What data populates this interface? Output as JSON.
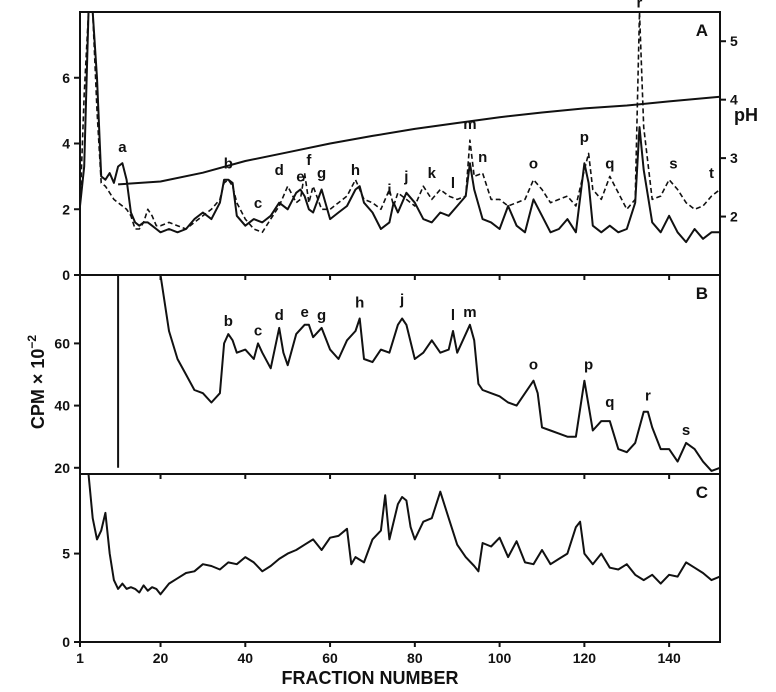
{
  "xlabel": "FRACTION NUMBER",
  "ylabel": "CPM × 10",
  "ylabel_exponent": "−2",
  "chart_data": [
    {
      "panel": "A",
      "type": "line",
      "x_ticks": [
        "1",
        "20",
        "40",
        "60",
        "80",
        "100",
        "120",
        "140"
      ],
      "xlim": [
        1,
        152
      ],
      "ylim": [
        0,
        8
      ],
      "y_ticks": [
        "0",
        "2",
        "4",
        "6"
      ],
      "y2label": "pH",
      "y2_ticks": [
        "2",
        "3",
        "4",
        "5"
      ],
      "y2lim": [
        1,
        5.5
      ],
      "series": [
        {
          "style": "solid",
          "x": [
            1,
            2,
            3,
            4,
            5,
            6,
            7,
            8,
            9,
            10,
            11,
            12,
            13,
            14,
            15,
            16,
            17,
            18,
            19,
            20,
            22,
            24,
            26,
            28,
            30,
            32,
            34,
            35,
            36,
            37,
            38,
            40,
            42,
            44,
            46,
            48,
            50,
            52,
            53,
            54,
            55,
            56,
            58,
            60,
            62,
            64,
            66,
            67,
            68,
            70,
            72,
            74,
            75,
            76,
            78,
            80,
            82,
            84,
            86,
            88,
            90,
            92,
            93,
            94,
            96,
            98,
            100,
            102,
            104,
            106,
            108,
            110,
            112,
            114,
            116,
            118,
            120,
            121,
            122,
            124,
            126,
            128,
            130,
            132,
            133,
            134,
            136,
            138,
            140,
            142,
            144,
            146,
            148,
            150,
            152
          ],
          "y": [
            2.1,
            3.3,
            8,
            8,
            6,
            3,
            2.9,
            3.1,
            2.8,
            3.3,
            3.4,
            2.9,
            1.9,
            1.6,
            1.5,
            1.6,
            1.6,
            1.5,
            1.4,
            1.3,
            1.4,
            1.3,
            1.4,
            1.7,
            1.9,
            1.7,
            2.2,
            2.9,
            2.9,
            2.8,
            1.8,
            1.5,
            1.7,
            1.6,
            1.8,
            2.2,
            2.0,
            2.5,
            2.6,
            2.4,
            2.0,
            1.9,
            2.6,
            1.7,
            1.9,
            2.1,
            2.6,
            2.7,
            2.2,
            1.9,
            1.4,
            1.6,
            2.2,
            1.9,
            2.5,
            2.2,
            1.7,
            1.6,
            1.9,
            1.8,
            2.1,
            2.4,
            3.4,
            2.6,
            1.7,
            1.6,
            1.4,
            2.1,
            1.5,
            1.3,
            2.3,
            1.8,
            1.3,
            1.4,
            1.7,
            1.3,
            3.4,
            2.8,
            1.5,
            1.3,
            1.5,
            1.3,
            1.4,
            2.2,
            4.5,
            3.2,
            1.6,
            1.3,
            1.8,
            1.3,
            1.0,
            1.4,
            1.1,
            1.3,
            1.3
          ]
        },
        {
          "style": "dashed",
          "x": [
            1,
            2,
            3,
            4,
            5,
            6,
            7,
            8,
            9,
            10,
            11,
            12,
            13,
            14,
            15,
            16,
            17,
            18,
            19,
            20,
            22,
            24,
            26,
            28,
            30,
            32,
            34,
            35,
            36,
            37,
            38,
            40,
            42,
            44,
            46,
            48,
            50,
            52,
            53,
            54,
            55,
            56,
            58,
            60,
            62,
            64,
            66,
            67,
            68,
            70,
            72,
            74,
            75,
            76,
            78,
            80,
            82,
            84,
            86,
            88,
            90,
            92,
            93,
            94,
            96,
            98,
            100,
            102,
            104,
            106,
            108,
            110,
            112,
            114,
            116,
            118,
            120,
            121,
            122,
            124,
            126,
            128,
            130,
            132,
            133,
            134,
            136,
            138,
            140,
            142,
            144,
            146,
            148,
            150,
            152
          ],
          "y": [
            2.0,
            5.5,
            8,
            8,
            5,
            2.8,
            2.7,
            2.5,
            2.3,
            2.2,
            2.1,
            2.0,
            1.8,
            1.4,
            1.4,
            1.6,
            2.0,
            1.8,
            1.5,
            1.5,
            1.6,
            1.5,
            1.4,
            1.6,
            1.8,
            2.0,
            2.3,
            2.8,
            2.9,
            2.7,
            2.2,
            1.7,
            1.4,
            1.3,
            1.7,
            2.1,
            2.7,
            2.2,
            2.3,
            3.1,
            2.2,
            2.7,
            2.0,
            2.0,
            2.2,
            2.4,
            2.9,
            2.6,
            2.3,
            2.2,
            2.0,
            2.6,
            2.1,
            2.5,
            2.3,
            2.1,
            2.7,
            2.3,
            2.6,
            2.4,
            2.3,
            2.4,
            4.1,
            3.0,
            3.1,
            2.3,
            2.3,
            2.1,
            2.2,
            2.3,
            2.9,
            2.6,
            2.2,
            2.3,
            2.4,
            2.1,
            3.2,
            3.7,
            2.6,
            2.3,
            3.0,
            2.5,
            2.0,
            2.3,
            8,
            4.5,
            2.3,
            2.4,
            2.9,
            2.6,
            2.2,
            2.0,
            2.1,
            2.4,
            2.6
          ]
        },
        {
          "style": "solid",
          "axis": "y2",
          "x": [
            10,
            20,
            30,
            40,
            50,
            60,
            70,
            80,
            90,
            100,
            110,
            120,
            130,
            140,
            152
          ],
          "y": [
            2.55,
            2.6,
            2.75,
            2.95,
            3.1,
            3.25,
            3.38,
            3.5,
            3.6,
            3.7,
            3.78,
            3.85,
            3.9,
            3.97,
            4.05
          ]
        }
      ],
      "annotations": [
        {
          "text": "a",
          "x": 11,
          "y": 3.5
        },
        {
          "text": "b",
          "x": 36,
          "y": 3.0
        },
        {
          "text": "c",
          "x": 43,
          "y": 1.8
        },
        {
          "text": "d",
          "x": 48,
          "y": 2.8
        },
        {
          "text": "e",
          "x": 53,
          "y": 2.6
        },
        {
          "text": "f",
          "x": 55,
          "y": 3.1
        },
        {
          "text": "g",
          "x": 58,
          "y": 2.7
        },
        {
          "text": "h",
          "x": 66,
          "y": 2.8
        },
        {
          "text": "i",
          "x": 74,
          "y": 2.2
        },
        {
          "text": "j",
          "x": 78,
          "y": 2.6
        },
        {
          "text": "k",
          "x": 84,
          "y": 2.7
        },
        {
          "text": "l",
          "x": 89,
          "y": 2.4
        },
        {
          "text": "m",
          "x": 93,
          "y": 4.2
        },
        {
          "text": "n",
          "x": 96,
          "y": 3.2
        },
        {
          "text": "o",
          "x": 108,
          "y": 3.0
        },
        {
          "text": "p",
          "x": 120,
          "y": 3.8
        },
        {
          "text": "q",
          "x": 126,
          "y": 3.0
        },
        {
          "text": "r",
          "x": 133,
          "y": 7.9
        },
        {
          "text": "s",
          "x": 141,
          "y": 3.0
        },
        {
          "text": "t",
          "x": 150,
          "y": 2.7
        }
      ]
    },
    {
      "panel": "B",
      "type": "line",
      "xlim": [
        1,
        152
      ],
      "ylim": [
        18,
        82
      ],
      "y_ticks": [
        "20",
        "40",
        "60"
      ],
      "series": [
        {
          "style": "solid",
          "x": [
            10,
            10,
            20,
            22,
            24,
            26,
            28,
            30,
            32,
            34,
            35,
            36,
            37,
            38,
            40,
            42,
            43,
            44,
            46,
            48,
            49,
            50,
            52,
            54,
            55,
            56,
            58,
            60,
            62,
            64,
            66,
            67,
            68,
            70,
            72,
            74,
            76,
            77,
            78,
            80,
            82,
            84,
            86,
            88,
            89,
            90,
            92,
            93,
            94,
            95,
            96,
            98,
            100,
            102,
            104,
            106,
            108,
            109,
            110,
            112,
            114,
            116,
            118,
            120,
            121,
            122,
            124,
            126,
            128,
            130,
            132,
            134,
            135,
            136,
            138,
            140,
            142,
            144,
            146,
            148,
            150,
            152
          ],
          "y": [
            20,
            82,
            82,
            64,
            55,
            50,
            45,
            44,
            41,
            44,
            60,
            63,
            61,
            57,
            58,
            55,
            60,
            57,
            52,
            65,
            57,
            53,
            63,
            66,
            66,
            62,
            65,
            58,
            55,
            61,
            64,
            68,
            55,
            54,
            58,
            57,
            66,
            68,
            66,
            55,
            57,
            61,
            57,
            58,
            64,
            57,
            63,
            66,
            61,
            47,
            45,
            44,
            43,
            41,
            40,
            44,
            48,
            44,
            33,
            32,
            31,
            30,
            30,
            48,
            40,
            32,
            35,
            35,
            26,
            25,
            28,
            38,
            38,
            33,
            26,
            26,
            22,
            28,
            26,
            22,
            19,
            20
          ]
        }
      ],
      "annotations": [
        {
          "text": "b",
          "x": 36,
          "y": 63
        },
        {
          "text": "c",
          "x": 43,
          "y": 60
        },
        {
          "text": "d",
          "x": 48,
          "y": 65
        },
        {
          "text": "e",
          "x": 54,
          "y": 66
        },
        {
          "text": "g",
          "x": 58,
          "y": 65
        },
        {
          "text": "h",
          "x": 67,
          "y": 69
        },
        {
          "text": "j",
          "x": 77,
          "y": 70
        },
        {
          "text": "l",
          "x": 89,
          "y": 65
        },
        {
          "text": "m",
          "x": 93,
          "y": 66
        },
        {
          "text": "o",
          "x": 108,
          "y": 49
        },
        {
          "text": "p",
          "x": 121,
          "y": 49
        },
        {
          "text": "q",
          "x": 126,
          "y": 37
        },
        {
          "text": "r",
          "x": 135,
          "y": 39
        },
        {
          "text": "s",
          "x": 144,
          "y": 28
        }
      ]
    },
    {
      "panel": "C",
      "type": "line",
      "xlim": [
        1,
        152
      ],
      "ylim": [
        0,
        9.5
      ],
      "y_ticks": [
        "0",
        "5"
      ],
      "series": [
        {
          "style": "solid",
          "x": [
            3,
            4,
            5,
            6,
            7,
            8,
            9,
            10,
            11,
            12,
            13,
            14,
            15,
            16,
            17,
            18,
            19,
            20,
            22,
            24,
            26,
            28,
            30,
            32,
            34,
            36,
            38,
            40,
            42,
            44,
            46,
            48,
            50,
            52,
            54,
            56,
            58,
            60,
            62,
            64,
            65,
            66,
            68,
            70,
            72,
            73,
            74,
            76,
            77,
            78,
            79,
            80,
            82,
            84,
            86,
            88,
            90,
            92,
            94,
            95,
            96,
            98,
            100,
            102,
            104,
            106,
            108,
            110,
            112,
            114,
            116,
            118,
            119,
            120,
            122,
            124,
            126,
            128,
            130,
            132,
            134,
            136,
            138,
            140,
            142,
            144,
            146,
            148,
            150,
            152
          ],
          "y": [
            9.5,
            7.0,
            5.8,
            6.3,
            7.3,
            5.0,
            3.5,
            3.0,
            3.3,
            3.0,
            3.1,
            3.0,
            2.8,
            3.2,
            2.9,
            3.1,
            3.0,
            2.7,
            3.3,
            3.6,
            3.9,
            4.0,
            4.4,
            4.3,
            4.1,
            4.5,
            4.4,
            4.8,
            4.5,
            4.0,
            4.3,
            4.7,
            5.0,
            5.2,
            5.5,
            5.8,
            5.2,
            5.9,
            6.0,
            6.4,
            4.4,
            4.8,
            4.5,
            5.8,
            6.3,
            8.3,
            5.8,
            7.8,
            8.2,
            8.0,
            6.5,
            5.8,
            6.8,
            7.0,
            8.5,
            7.0,
            5.5,
            4.8,
            4.3,
            4.0,
            5.6,
            5.4,
            5.9,
            4.8,
            5.7,
            4.5,
            4.4,
            5.2,
            4.4,
            4.7,
            5.0,
            6.5,
            6.8,
            5.0,
            4.4,
            5.0,
            4.2,
            4.1,
            4.4,
            3.8,
            3.5,
            3.8,
            3.3,
            3.8,
            3.7,
            4.5,
            4.2,
            3.9,
            3.5,
            3.7
          ]
        }
      ],
      "annotations": []
    }
  ]
}
